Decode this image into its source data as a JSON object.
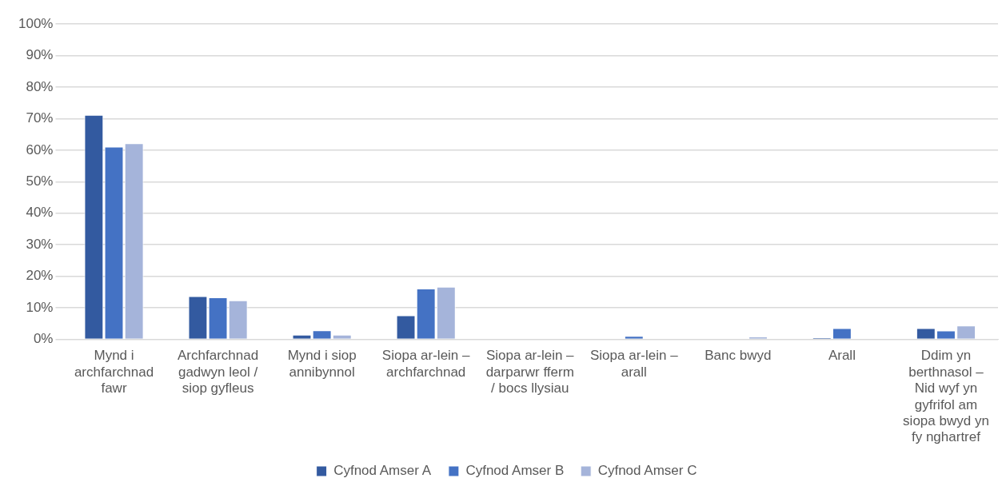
{
  "chart_data": {
    "type": "bar",
    "categories": [
      "Mynd i archfarchnad fawr",
      "Archfarchnad gadwyn leol / siop gyfleus",
      "Mynd i siop annibynnol",
      "Siopa ar-lein – archfarchnad",
      "Siopa ar-lein – darparwr fferm / bocs llysiau",
      "Siopa ar-lein – arall",
      "Banc bwyd",
      "Arall",
      "Ddim yn berthnasol – Nid wyf yn gyfrifol am siopa bwyd yn fy nghartref"
    ],
    "series": [
      {
        "name": "Cyfnod Amser A",
        "color": "#335aa0",
        "values": [
          71.2,
          13.7,
          1.5,
          7.6,
          0,
          0,
          0,
          0.6,
          3.6
        ]
      },
      {
        "name": "Cyfnod Amser B",
        "color": "#4472c4",
        "values": [
          61.1,
          13.3,
          2.9,
          16.1,
          0,
          1.1,
          0,
          3.6,
          2.8
        ]
      },
      {
        "name": "Cyfnod Amser C",
        "color": "#a5b4da",
        "values": [
          62.2,
          12.4,
          1.5,
          16.7,
          0,
          0,
          0.9,
          0,
          4.4
        ]
      }
    ],
    "ylim": [
      0,
      100
    ],
    "yticks": [
      {
        "value": 0,
        "label": "0%"
      },
      {
        "value": 10,
        "label": "10%"
      },
      {
        "value": 20,
        "label": "20%"
      },
      {
        "value": 30,
        "label": "30%"
      },
      {
        "value": 40,
        "label": "40%"
      },
      {
        "value": 50,
        "label": "50%"
      },
      {
        "value": 60,
        "label": "60%"
      },
      {
        "value": 70,
        "label": "70%"
      },
      {
        "value": 80,
        "label": "80%"
      },
      {
        "value": 90,
        "label": "90%"
      },
      {
        "value": 100,
        "label": "100%"
      }
    ],
    "grid": "y",
    "legend": "bottom"
  }
}
